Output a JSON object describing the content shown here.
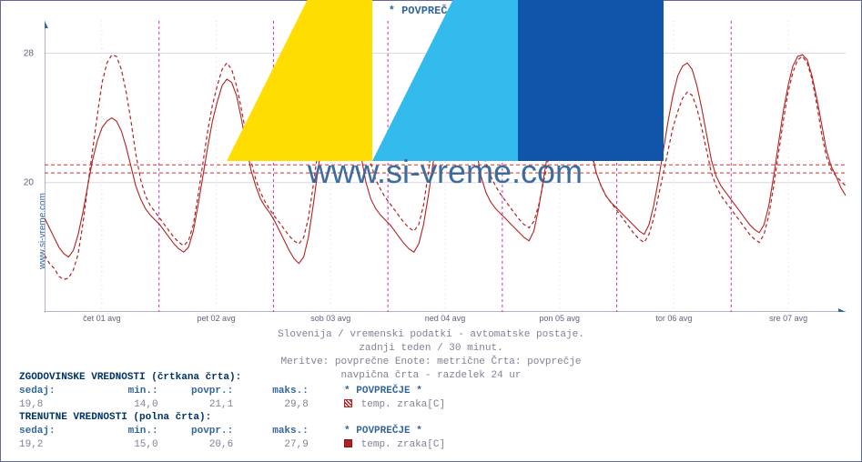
{
  "title": "* POVPREČJE *",
  "watermark_text": "www.si-vreme.com",
  "side_label": "www.si-vreme.com",
  "caption": {
    "l1": "Slovenija / vremenski podatki - avtomatske postaje.",
    "l2": "zadnji teden / 30 minut.",
    "l3": "Meritve: povprečne  Enote: metrične  Črta: povprečje",
    "l4": "navpična črta - razdelek 24 ur"
  },
  "chart": {
    "type": "line",
    "ylim_min": 12,
    "ylim_max": 30,
    "yticks": [
      20,
      28
    ],
    "x_categories": [
      "čet 01 avg",
      "pet 02 avg",
      "sob 03 avg",
      "ned 04 avg",
      "pon 05 avg",
      "tor 06 avg",
      "sre 07 avg"
    ],
    "x_days": 7,
    "background_color": "#ffffff",
    "grid_color": "#d8d8e8",
    "day_sep_color": "#cc33aa",
    "axis_color": "#666699",
    "arrow_color": "#336699",
    "avg_line_color": "#cc3333",
    "series": {
      "history": {
        "label": "temp. zraka[C]",
        "color": "#b22222",
        "dash": "4 3",
        "width": 1.2,
        "avg": 21.1,
        "values": [
          15.5,
          15.0,
          14.7,
          14.2,
          14.0,
          14.1,
          14.6,
          15.6,
          17.5,
          19.8,
          22.0,
          24.2,
          26.2,
          27.4,
          27.9,
          27.8,
          27.0,
          25.6,
          23.8,
          21.8,
          20.2,
          19.2,
          18.6,
          18.2,
          17.8,
          17.4,
          17.0,
          16.6,
          16.3,
          16.1,
          16.4,
          17.4,
          19.2,
          21.2,
          23.2,
          24.8,
          26.0,
          27.0,
          27.4,
          27.0,
          26.0,
          24.6,
          23.0,
          21.4,
          20.2,
          19.4,
          18.8,
          18.3,
          17.9,
          17.5,
          17.1,
          16.7,
          16.4,
          16.2,
          16.6,
          17.8,
          19.8,
          22.0,
          24.2,
          26.2,
          27.6,
          28.6,
          29.2,
          29.0,
          28.0,
          26.4,
          24.6,
          22.6,
          21.2,
          20.2,
          19.6,
          19.1,
          18.7,
          18.3,
          17.9,
          17.5,
          17.2,
          17.0,
          17.4,
          18.6,
          20.6,
          23.0,
          25.4,
          27.4,
          28.8,
          29.6,
          29.8,
          29.2,
          28.0,
          26.2,
          24.2,
          22.4,
          21.2,
          20.4,
          19.8,
          19.3,
          18.9,
          18.5,
          18.1,
          17.7,
          17.4,
          17.2,
          17.6,
          18.6,
          20.0,
          21.4,
          22.8,
          24.0,
          24.8,
          25.4,
          25.6,
          25.2,
          24.4,
          23.2,
          21.8,
          20.6,
          19.8,
          19.2,
          18.8,
          18.4,
          18.0,
          17.6,
          17.2,
          16.8,
          16.5,
          16.3,
          16.8,
          17.8,
          19.2,
          20.6,
          22.0,
          23.4,
          24.4,
          25.2,
          25.6,
          25.4,
          24.6,
          23.4,
          22.0,
          20.6,
          19.8,
          19.2,
          18.8,
          18.4,
          18.0,
          17.6,
          17.2,
          16.8,
          16.5,
          16.3,
          16.8,
          18.0,
          19.8,
          21.8,
          23.8,
          25.6,
          26.8,
          27.6,
          27.8,
          27.4,
          26.4,
          24.8,
          23.0,
          21.6,
          20.8,
          20.4,
          20.1,
          19.8
        ]
      },
      "current": {
        "label": "temp. zraka[C]",
        "color": "#b22222",
        "dash": "",
        "width": 1.1,
        "avg": 20.6,
        "values": [
          17.8,
          17.2,
          16.6,
          16.0,
          15.6,
          15.4,
          15.8,
          16.8,
          18.2,
          19.8,
          21.4,
          22.6,
          23.4,
          23.8,
          24.0,
          23.8,
          23.2,
          22.2,
          21.0,
          19.8,
          19.0,
          18.4,
          18.0,
          17.7,
          17.4,
          17.0,
          16.6,
          16.2,
          15.9,
          15.7,
          16.0,
          17.0,
          18.6,
          20.4,
          22.2,
          23.8,
          25.0,
          26.0,
          26.4,
          26.2,
          25.4,
          24.0,
          22.4,
          20.8,
          19.8,
          19.0,
          18.5,
          18.1,
          17.6,
          17.0,
          16.4,
          15.8,
          15.3,
          15.0,
          15.4,
          16.6,
          18.6,
          20.8,
          23.0,
          24.6,
          25.4,
          25.8,
          26.0,
          25.6,
          24.6,
          23.2,
          21.6,
          20.0,
          19.0,
          18.4,
          18.0,
          17.7,
          17.4,
          17.0,
          16.6,
          16.2,
          15.9,
          15.7,
          16.2,
          17.4,
          19.2,
          21.2,
          23.0,
          24.2,
          25.0,
          25.6,
          25.8,
          25.4,
          24.6,
          23.4,
          22.0,
          20.4,
          19.4,
          18.8,
          18.4,
          18.1,
          17.8,
          17.5,
          17.2,
          16.9,
          16.6,
          16.4,
          17.0,
          18.4,
          20.2,
          22.0,
          23.4,
          24.2,
          25.0,
          25.8,
          25.8,
          25.4,
          24.6,
          23.4,
          22.0,
          20.6,
          19.8,
          19.2,
          18.8,
          18.5,
          18.2,
          17.9,
          17.6,
          17.3,
          17.0,
          16.8,
          17.4,
          18.6,
          20.2,
          22.0,
          23.8,
          25.4,
          26.6,
          27.2,
          27.4,
          27.0,
          26.0,
          24.6,
          23.0,
          21.4,
          20.4,
          19.8,
          19.4,
          19.0,
          18.6,
          18.2,
          17.8,
          17.4,
          17.1,
          16.9,
          17.4,
          18.6,
          20.4,
          22.4,
          24.4,
          26.0,
          27.2,
          27.8,
          27.9,
          27.6,
          26.6,
          25.2,
          23.6,
          22.0,
          21.0,
          20.4,
          19.7,
          19.2
        ]
      }
    }
  },
  "legend": {
    "hist_header": "ZGODOVINSKE VREDNOSTI (črtkana črta):",
    "curr_header": "TRENUTNE VREDNOSTI (polna črta):",
    "cols": {
      "sedaj": "sedaj:",
      "min": "min.:",
      "povpr": "povpr.:",
      "maks": "maks.:"
    },
    "star_label": "* POVPREČJE *",
    "temp_label": "temp. zraka[C]",
    "hist": {
      "sedaj": "19,8",
      "min": "14,0",
      "povpr": "21,1",
      "maks": "29,8"
    },
    "curr": {
      "sedaj": "19,2",
      "min": "15,0",
      "povpr": "20,6",
      "maks": "27,9"
    }
  },
  "logo_colors": {
    "a": "#ffdd00",
    "b": "#33bbee",
    "c": "#1155aa"
  }
}
